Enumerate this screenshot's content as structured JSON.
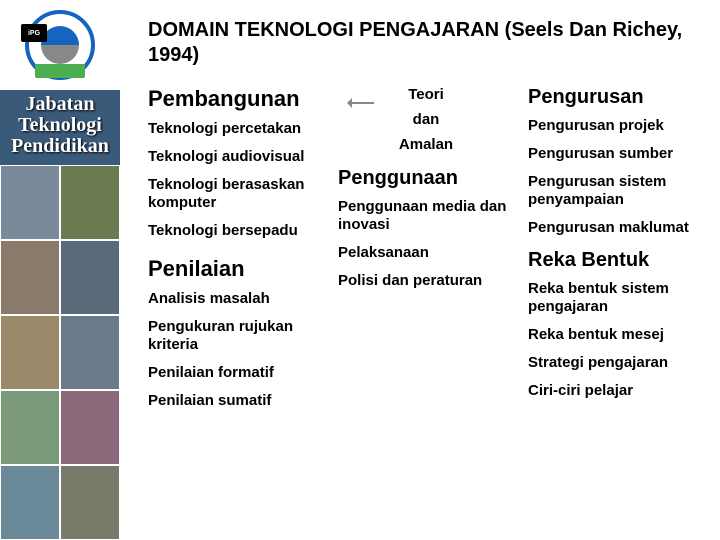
{
  "sidebar": {
    "logo_tag": "iPG",
    "dept_label": "Jabatan\nTeknologi\nPendidikan",
    "photo_colors": [
      "#7a8a9a",
      "#6b7b50",
      "#8a7a6a",
      "#5a6a7a",
      "#9a8a6a",
      "#6a7a8a",
      "#7a9a7a",
      "#8a6a7a",
      "#6a8a9a",
      "#7a7a6a"
    ]
  },
  "title": "DOMAIN TEKNOLOGI  PENGAJARAN (Seels Dan Richey, 1994)",
  "col1": {
    "h1": "Pembangunan",
    "i1": "Teknologi percetakan",
    "i2": "Teknologi audiovisual",
    "i3": "Teknologi berasaskan komputer",
    "i4": "Teknologi bersepadu",
    "h2": "Penilaian",
    "i5": "Analisis masalah",
    "i6": "Pengukuran rujukan kriteria",
    "i7": "Penilaian formatif",
    "i8": "Penilaian sumatif"
  },
  "col2": {
    "t1": "Teori",
    "t2": "dan",
    "t3": "Amalan",
    "h1": "Penggunaan",
    "i1": "Penggunaan media dan inovasi",
    "i2": "Pelaksanaan",
    "i3": "Polisi dan peraturan"
  },
  "col3": {
    "h1": "Pengurusan",
    "i1": "Pengurusan projek",
    "i2": "Pengurusan sumber",
    "i3": "Pengurusan sistem penyampaian",
    "i4": "Pengurusan maklumat",
    "h2": "Reka Bentuk",
    "i5": "Reka bentuk sistem pengajaran",
    "i6": "Reka bentuk mesej",
    "i7": "Strategi pengajaran",
    "i8": "Ciri-ciri pelajar"
  }
}
